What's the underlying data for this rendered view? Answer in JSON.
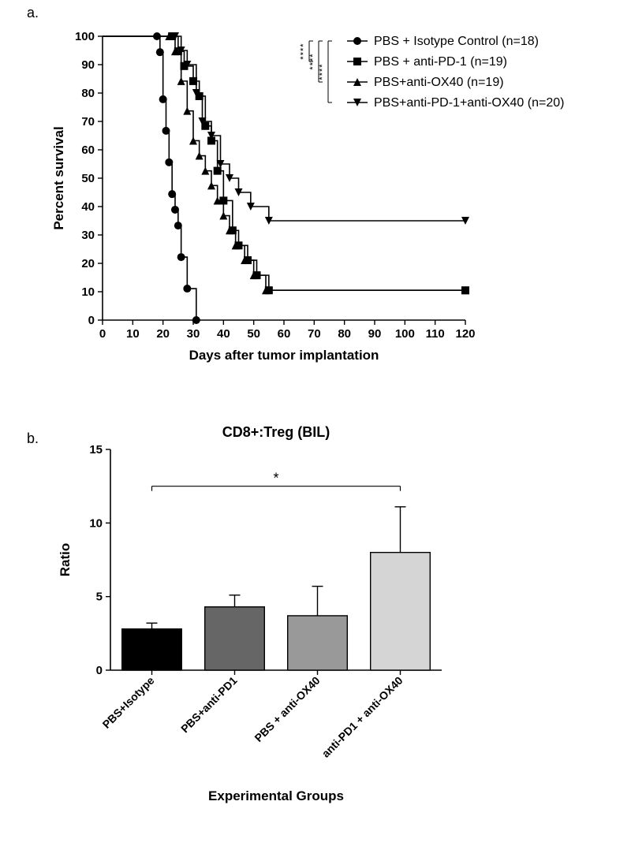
{
  "panelA": {
    "label": "a.",
    "type": "survival-curve",
    "xlabel": "Days after tumor implantation",
    "ylabel": "Percent survival",
    "xlim": [
      0,
      120
    ],
    "ylim": [
      0,
      100
    ],
    "xtick_step": 10,
    "ytick_step": 10,
    "axis_color": "#000000",
    "background_color": "#ffffff",
    "line_width": 1.6,
    "marker_size": 5,
    "series": [
      {
        "name": "PBS + Isotype Control (n=18)",
        "marker": "circle",
        "color": "#000000",
        "steps": [
          [
            0,
            100
          ],
          [
            18,
            100
          ],
          [
            19,
            94.4
          ],
          [
            20,
            77.8
          ],
          [
            21,
            66.7
          ],
          [
            22,
            55.6
          ],
          [
            23,
            44.4
          ],
          [
            24,
            38.9
          ],
          [
            25,
            33.3
          ],
          [
            26,
            22.2
          ],
          [
            28,
            11.1
          ],
          [
            31,
            0
          ]
        ]
      },
      {
        "name": "PBS + anti-PD-1 (n=19)",
        "marker": "square",
        "color": "#000000",
        "steps": [
          [
            0,
            100
          ],
          [
            23,
            100
          ],
          [
            25,
            94.7
          ],
          [
            27,
            89.5
          ],
          [
            30,
            84.2
          ],
          [
            32,
            78.9
          ],
          [
            34,
            68.4
          ],
          [
            36,
            63.2
          ],
          [
            38,
            52.6
          ],
          [
            40,
            42.1
          ],
          [
            43,
            31.6
          ],
          [
            45,
            26.3
          ],
          [
            48,
            21.1
          ],
          [
            51,
            15.8
          ],
          [
            55,
            10.5
          ],
          [
            120,
            10.5
          ]
        ]
      },
      {
        "name": "PBS+anti-OX40 (n=19)",
        "marker": "triangle-up",
        "color": "#000000",
        "steps": [
          [
            0,
            100
          ],
          [
            22,
            100
          ],
          [
            24,
            94.7
          ],
          [
            26,
            84.2
          ],
          [
            28,
            73.7
          ],
          [
            30,
            63.2
          ],
          [
            32,
            57.9
          ],
          [
            34,
            52.6
          ],
          [
            36,
            47.4
          ],
          [
            38,
            42.1
          ],
          [
            40,
            36.8
          ],
          [
            42,
            31.6
          ],
          [
            44,
            26.3
          ],
          [
            47,
            21.1
          ],
          [
            50,
            15.8
          ],
          [
            54,
            10.5
          ],
          [
            120,
            10.5
          ]
        ]
      },
      {
        "name": "PBS+anti-PD-1+anti-OX40 (n=20)",
        "marker": "triangle-down",
        "color": "#000000",
        "steps": [
          [
            0,
            100
          ],
          [
            24,
            100
          ],
          [
            26,
            95
          ],
          [
            28,
            90
          ],
          [
            31,
            80
          ],
          [
            33,
            70
          ],
          [
            36,
            65
          ],
          [
            39,
            55
          ],
          [
            42,
            50
          ],
          [
            45,
            45
          ],
          [
            49,
            40
          ],
          [
            55,
            35
          ],
          [
            120,
            35
          ]
        ]
      }
    ],
    "sig_brackets": [
      {
        "from": 0,
        "to": 1,
        "label": "****"
      },
      {
        "from": 0,
        "to": 2,
        "label": "****"
      },
      {
        "from": 0,
        "to": 3,
        "label": "****"
      }
    ]
  },
  "panelB": {
    "label": "b.",
    "type": "bar",
    "title": "CD8+:Treg (BIL)",
    "xlabel": "Experimental Groups",
    "ylabel": "Ratio",
    "ylim": [
      0,
      15
    ],
    "ytick_step": 5,
    "bar_width": 0.72,
    "border_color": "#000000",
    "border_width": 1.4,
    "error_cap": 7,
    "categories": [
      "PBS+Isotype",
      "PBS+anti-PD1",
      "PBS + anti-OX40",
      "anti-PD1 + anti-OX40"
    ],
    "values": [
      2.8,
      4.3,
      3.7,
      8.0
    ],
    "errors": [
      0.4,
      0.8,
      2.0,
      3.1
    ],
    "bar_colors": [
      "#000000",
      "#666666",
      "#999999",
      "#d5d5d5"
    ],
    "sig": {
      "from": 0,
      "to": 3,
      "label": "*",
      "y": 12.5
    }
  },
  "fonts": {
    "axis_label_size": 17,
    "tick_size": 15,
    "legend_size": 16,
    "title_size": 18
  }
}
